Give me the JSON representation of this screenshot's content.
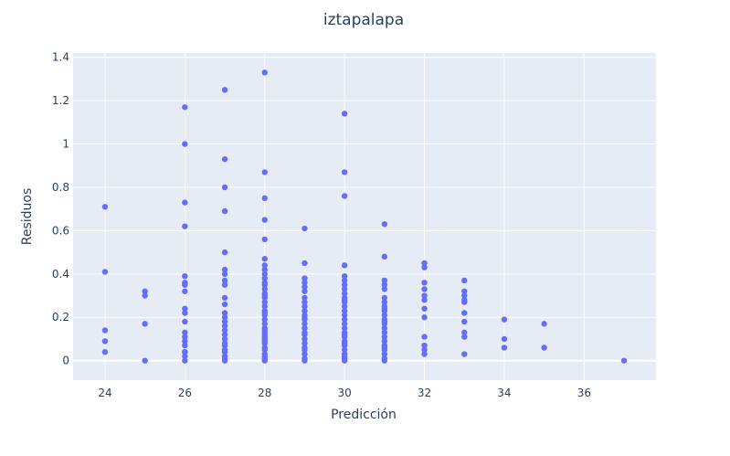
{
  "chart_data": {
    "type": "scatter",
    "title": "iztapalapa",
    "xlabel": "Predicción",
    "ylabel": "Residuos",
    "xlim": [
      23.2,
      37.8
    ],
    "ylim": [
      -0.09,
      1.42
    ],
    "xticks": [
      24,
      26,
      28,
      30,
      32,
      34,
      36
    ],
    "yticks": [
      0,
      0.2,
      0.4,
      0.6,
      0.8,
      1,
      1.2,
      1.4
    ],
    "grid": true,
    "colors": {
      "plot_bg": "#e5ecf6",
      "grid": "#ffffff",
      "marker": "#636efa",
      "text": "#2a3f5f"
    },
    "series": [
      {
        "x": [
          24,
          24,
          24,
          24,
          24,
          25,
          25,
          25,
          25,
          26,
          26,
          26,
          26,
          26,
          26,
          26,
          26,
          26,
          26,
          26,
          26,
          26,
          26,
          26,
          26,
          26,
          26,
          26,
          27,
          27,
          27,
          27,
          27,
          27,
          27,
          27,
          27,
          27,
          27,
          27,
          27,
          27,
          27,
          27,
          27,
          27,
          27,
          27,
          27,
          27,
          27,
          27,
          27,
          27,
          28,
          28,
          28,
          28,
          28,
          28,
          28,
          28,
          28,
          28,
          28,
          28,
          28,
          28,
          28,
          28,
          28,
          28,
          28,
          28,
          28,
          28,
          28,
          28,
          28,
          28,
          28,
          28,
          28,
          28,
          28,
          28,
          28,
          28,
          28,
          28,
          28,
          29,
          29,
          29,
          29,
          29,
          29,
          29,
          29,
          29,
          29,
          29,
          29,
          29,
          29,
          29,
          29,
          29,
          29,
          29,
          29,
          29,
          29,
          29,
          29,
          30,
          30,
          30,
          30,
          30,
          30,
          30,
          30,
          30,
          30,
          30,
          30,
          30,
          30,
          30,
          30,
          30,
          30,
          30,
          30,
          30,
          30,
          30,
          30,
          30,
          30,
          30,
          30,
          30,
          31,
          31,
          31,
          31,
          31,
          31,
          31,
          31,
          31,
          31,
          31,
          31,
          31,
          31,
          31,
          31,
          31,
          31,
          31,
          31,
          31,
          31,
          31,
          31,
          32,
          32,
          32,
          32,
          32,
          32,
          32,
          32,
          32,
          32,
          32,
          32,
          33,
          33,
          33,
          33,
          33,
          33,
          33,
          33,
          33,
          33,
          34,
          34,
          34,
          35,
          35,
          37
        ],
        "y": [
          0.71,
          0.41,
          0.14,
          0.09,
          0.04,
          0.32,
          0.3,
          0.17,
          0.0,
          1.17,
          1.0,
          0.73,
          0.62,
          0.39,
          0.36,
          0.35,
          0.32,
          0.24,
          0.22,
          0.18,
          0.13,
          0.11,
          0.09,
          0.07,
          0.04,
          0.04,
          0.02,
          0.0,
          1.25,
          0.93,
          0.8,
          0.69,
          0.5,
          0.42,
          0.4,
          0.37,
          0.35,
          0.29,
          0.26,
          0.22,
          0.2,
          0.18,
          0.16,
          0.14,
          0.12,
          0.1,
          0.08,
          0.07,
          0.05,
          0.04,
          0.02,
          0.01,
          0.0,
          0.05,
          1.33,
          0.87,
          0.75,
          0.65,
          0.56,
          0.47,
          0.44,
          0.4,
          0.38,
          0.35,
          0.33,
          0.31,
          0.29,
          0.27,
          0.25,
          0.23,
          0.21,
          0.19,
          0.17,
          0.15,
          0.13,
          0.11,
          0.1,
          0.08,
          0.06,
          0.05,
          0.03,
          0.02,
          0.0,
          0.12,
          0.3,
          0.36,
          0.42,
          0.14,
          0.22,
          0.09,
          0.01,
          0.61,
          0.45,
          0.38,
          0.36,
          0.32,
          0.29,
          0.27,
          0.25,
          0.23,
          0.21,
          0.19,
          0.17,
          0.15,
          0.13,
          0.12,
          0.1,
          0.08,
          0.06,
          0.05,
          0.03,
          0.01,
          0.0,
          0.34,
          0.2,
          1.14,
          0.87,
          0.76,
          0.44,
          0.39,
          0.37,
          0.35,
          0.31,
          0.29,
          0.27,
          0.25,
          0.23,
          0.21,
          0.19,
          0.17,
          0.15,
          0.13,
          0.11,
          0.09,
          0.07,
          0.05,
          0.03,
          0.02,
          0.0,
          0.33,
          0.28,
          0.12,
          0.08,
          0.01,
          0.63,
          0.48,
          0.37,
          0.33,
          0.29,
          0.27,
          0.25,
          0.23,
          0.21,
          0.19,
          0.17,
          0.15,
          0.13,
          0.11,
          0.09,
          0.07,
          0.05,
          0.03,
          0.01,
          0.0,
          0.24,
          0.18,
          0.06,
          0.35,
          0.45,
          0.43,
          0.36,
          0.33,
          0.3,
          0.28,
          0.24,
          0.2,
          0.11,
          0.07,
          0.05,
          0.03,
          0.37,
          0.32,
          0.3,
          0.28,
          0.27,
          0.22,
          0.18,
          0.13,
          0.11,
          0.03,
          0.19,
          0.1,
          0.06,
          0.17,
          0.06,
          0.0
        ]
      }
    ]
  }
}
